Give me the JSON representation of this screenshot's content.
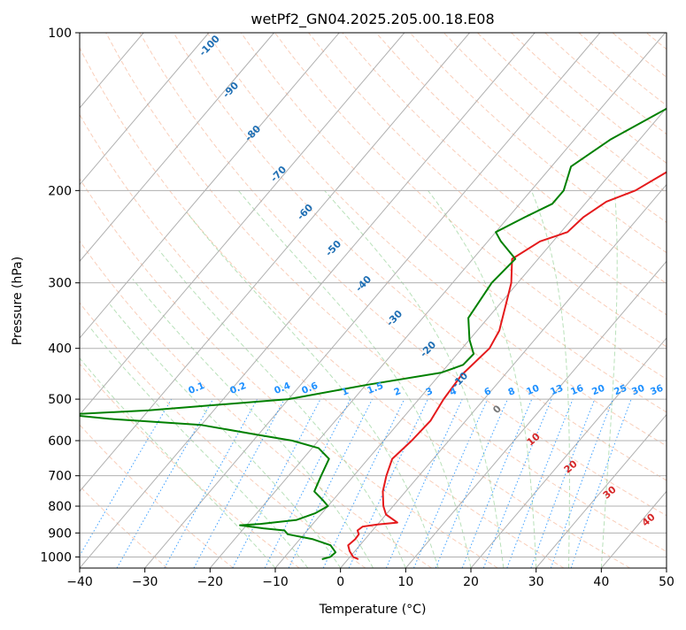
{
  "chart_data": {
    "type": "line",
    "title": "wetPf2_GN04.2025.205.00.18.E08",
    "xlabel": "Temperature (°C)",
    "ylabel": "Pressure (hPa)",
    "xlim": [
      -40,
      50
    ],
    "ylim": [
      1050,
      100
    ],
    "y_scale": "log",
    "grid": true,
    "x_ticks": [
      -40,
      -30,
      -20,
      -10,
      0,
      10,
      20,
      30,
      40,
      50
    ],
    "y_ticks": [
      100,
      200,
      300,
      400,
      500,
      600,
      700,
      800,
      900,
      1000
    ],
    "x_tick_labels": [
      "−40",
      "−30",
      "−20",
      "−10",
      "0",
      "10",
      "20",
      "30",
      "40",
      "50"
    ],
    "y_tick_labels": [
      "100",
      "200",
      "300",
      "400",
      "500",
      "600",
      "700",
      "800",
      "900",
      "1000"
    ],
    "colors": {
      "temperature": "#e41a1c",
      "dewpoint": "#008000",
      "isotherm": "#b0b0b0",
      "dry_adiabat": "#f4a582",
      "moist_adiabat": "#74c476",
      "mixing_ratio": "#1e90ff",
      "isotherm_label": "#1f6fb4",
      "mixing_ratio_label": "#1e90ff",
      "red_label": "#d62728"
    },
    "series": [
      {
        "color": "#e41a1c",
        "points": [
          [
            1.6,
            1010
          ],
          [
            0.5,
            1000
          ],
          [
            -0.8,
            975
          ],
          [
            -1.8,
            950
          ],
          [
            -1.5,
            925
          ],
          [
            -1.6,
            905
          ],
          [
            -2.3,
            890
          ],
          [
            -2.0,
            875
          ],
          [
            0.0,
            867
          ],
          [
            2.8,
            860
          ],
          [
            0.0,
            830
          ],
          [
            -1.5,
            800
          ],
          [
            -3.5,
            750
          ],
          [
            -5.0,
            700
          ],
          [
            -6.3,
            650
          ],
          [
            -5.7,
            600
          ],
          [
            -5.4,
            550
          ],
          [
            -6.2,
            500
          ],
          [
            -6.6,
            450
          ],
          [
            -5.8,
            400
          ],
          [
            -6.6,
            370
          ],
          [
            -9.0,
            330
          ],
          [
            -11.0,
            300
          ],
          [
            -14.0,
            270
          ],
          [
            -12.0,
            250
          ],
          [
            -9.0,
            240
          ],
          [
            -8.5,
            225
          ],
          [
            -7.0,
            210
          ],
          [
            -4.0,
            200
          ],
          [
            4.5,
            150
          ],
          [
            17.0,
            120
          ],
          [
            23.0,
            100
          ]
        ]
      },
      {
        "color": "#008000",
        "points": [
          [
            -4.0,
            1010
          ],
          [
            -3.0,
            1000
          ],
          [
            -2.8,
            980
          ],
          [
            -4.5,
            950
          ],
          [
            -8.0,
            925
          ],
          [
            -12.5,
            905
          ],
          [
            -13.5,
            890
          ],
          [
            -17.0,
            882
          ],
          [
            -21.0,
            870
          ],
          [
            -18.0,
            865
          ],
          [
            -13.0,
            850
          ],
          [
            -11.0,
            825
          ],
          [
            -10.0,
            800
          ],
          [
            -11.5,
            780
          ],
          [
            -14.0,
            750
          ],
          [
            -15.0,
            700
          ],
          [
            -16.0,
            650
          ],
          [
            -19.0,
            620
          ],
          [
            -24.0,
            600
          ],
          [
            -30.0,
            585
          ],
          [
            -40.0,
            560
          ],
          [
            -55.0,
            545
          ],
          [
            -62.0,
            535
          ],
          [
            -50.0,
            525
          ],
          [
            -30.0,
            500
          ],
          [
            -20.0,
            470
          ],
          [
            -10.0,
            445
          ],
          [
            -7.7,
            430
          ],
          [
            -7.5,
            410
          ],
          [
            -10.0,
            385
          ],
          [
            -13.0,
            350
          ],
          [
            -14.0,
            300
          ],
          [
            -13.5,
            270
          ],
          [
            -18.0,
            250
          ],
          [
            -20.0,
            240
          ],
          [
            -17.5,
            225
          ],
          [
            -15.0,
            212
          ],
          [
            -15.0,
            200
          ],
          [
            -17.0,
            180
          ],
          [
            -14.5,
            160
          ],
          [
            -10.0,
            140
          ],
          [
            -6.0,
            120
          ],
          [
            -3.0,
            100
          ]
        ]
      }
    ],
    "isotherm_labels": [
      "-100",
      "-90",
      "-80",
      "-70",
      "-60",
      "-50",
      "-40",
      "-30",
      "-20",
      "-10"
    ],
    "mixing_ratio_labels": [
      "0.1",
      "0.2",
      "0.4",
      "0.6",
      "1",
      "1.5",
      "2",
      "3",
      "4",
      "6",
      "8",
      "10",
      "13",
      "16",
      "20",
      "25",
      "30",
      "36"
    ],
    "gray_label": "0",
    "red_labels": [
      "10",
      "20",
      "30",
      "40"
    ]
  }
}
